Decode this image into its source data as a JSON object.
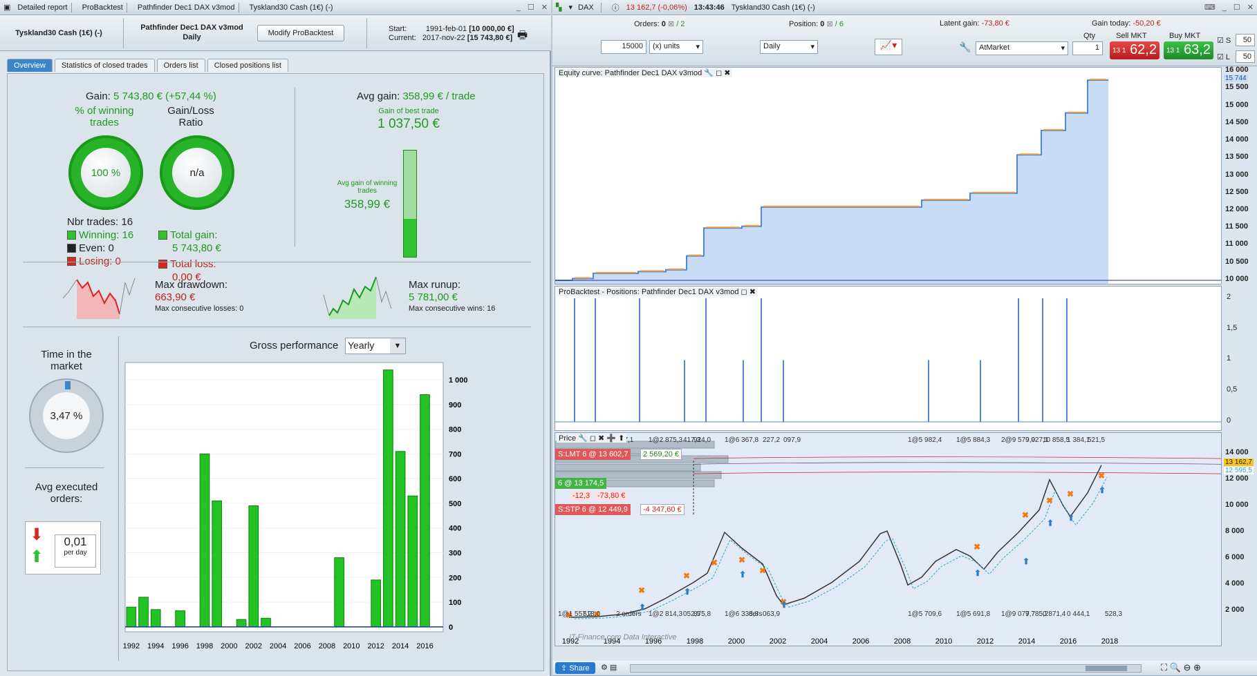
{
  "left_title": {
    "items": [
      "Detailed report",
      "ProBacktest",
      "Pathfinder Dec1 DAX v3mod",
      "Tyskland30 Cash (1€) (-)"
    ]
  },
  "header": {
    "instrument": "Tyskland30 Cash (1€) (-)",
    "system": "Pathfinder Dec1 DAX v3mod",
    "period": "Daily",
    "modify": "Modify ProBacktest",
    "start_label": "Start:",
    "start_date": "1991-feb-01",
    "start_val": "[10 000,00 €]",
    "current_label": "Current:",
    "current_date": "2017-nov-22",
    "current_val": "[15 743,80 €]"
  },
  "tabs": [
    "Overview",
    "Statistics of closed trades",
    "Orders list",
    "Closed positions list"
  ],
  "gain": {
    "label": "Gain:",
    "value": "5 743,80 € (+57,44 %)"
  },
  "pct_win": {
    "label": "% of winning trades",
    "value": "100 %"
  },
  "ratio": {
    "label": "Gain/Loss Ratio",
    "value": "n/a"
  },
  "trades": {
    "nbr": "Nbr trades: 16",
    "winning": "Winning: 16",
    "even": "Even: 0",
    "losing": "Losing: 0",
    "total_gain_label": "Total gain:",
    "total_gain": "5 743,80 €",
    "total_loss_label": "Total loss:",
    "total_loss": "0,00 €"
  },
  "avg": {
    "label": "Avg gain:",
    "value": "358,99 € / trade",
    "best_label": "Gain of best trade",
    "best": "1 037,50 €",
    "avg_win_label": "Avg gain of winning trades",
    "avg_win": "358,99 €"
  },
  "dd": {
    "label": "Max drawdown:",
    "value": "663,90 €",
    "consec": "Max consecutive losses: 0"
  },
  "ru": {
    "label": "Max runup:",
    "value": "5 781,00 €",
    "consec": "Max consecutive wins: 16"
  },
  "time": {
    "label": "Time in the market",
    "value": "3,47 %"
  },
  "avgexec": {
    "label": "Avg executed orders:",
    "value": "0,01",
    "unit": "per day"
  },
  "gross": {
    "label": "Gross performance",
    "select": "Yearly"
  },
  "chart_data": {
    "type": "bar",
    "x": [
      1992,
      1993,
      1994,
      1995,
      1996,
      1997,
      1998,
      1999,
      2000,
      2001,
      2002,
      2003,
      2004,
      2005,
      2006,
      2007,
      2008,
      2009,
      2010,
      2011,
      2012,
      2013,
      2014,
      2015,
      2016,
      2017
    ],
    "values": [
      80,
      120,
      70,
      0,
      65,
      0,
      700,
      510,
      0,
      30,
      490,
      35,
      0,
      0,
      0,
      0,
      0,
      280,
      0,
      0,
      190,
      1040,
      710,
      530,
      940,
      0
    ],
    "xticks": [
      "1992",
      "1994",
      "1996",
      "1998",
      "2000",
      "2002",
      "2004",
      "2006",
      "2008",
      "2010",
      "2012",
      "2014",
      "2016"
    ],
    "yticks": [
      "1 000",
      "900",
      "800",
      "700",
      "600",
      "500",
      "400",
      "300",
      "200",
      "100",
      "0"
    ],
    "ylim": [
      -20,
      1070
    ],
    "colors": {
      "bar": "#22c322"
    }
  },
  "right_title": {
    "sym": "DAX",
    "price": "13 162,7 (-0,06%)",
    "time": "13:43:46",
    "name": "Tyskland30 Cash (1€) (-)"
  },
  "rtool": {
    "orders_label": "Orders:",
    "orders": "0",
    "orders2": "/ 2",
    "pos_label": "Position:",
    "pos": "0",
    "pos2": "/ 6",
    "latent_label": "Latent gain:",
    "latent": "-73,80 €",
    "today_label": "Gain today:",
    "today": "-50,20 €",
    "qty_val": "15000",
    "units": "(x) units",
    "period": "Daily",
    "atmarket": "AtMarket",
    "qty_label": "Qty",
    "qty": "1",
    "sell_label": "Sell MKT",
    "sell_small": "13 1",
    "sell_big": "62,2",
    "buy_label": "Buy MKT",
    "buy_small": "13 1",
    "buy_big": "63,2",
    "s_label": "S",
    "s_val": "50",
    "l_label": "L",
    "l_val": "50"
  },
  "equity": {
    "title": "Equity curve: Pathfinder Dec1 DAX v3mod",
    "ticks": [
      "16 000",
      "15 500",
      "15 000",
      "14 500",
      "14 000",
      "13 500",
      "13 000",
      "12 500",
      "12 000",
      "11 500",
      "11 000",
      "10 500",
      "10 000"
    ],
    "last": "15 744"
  },
  "positions": {
    "title": "ProBacktest - Positions: Pathfinder Dec1 DAX v3mod",
    "ticks": [
      "2",
      "1,5",
      "1",
      "0,5",
      "0"
    ]
  },
  "price": {
    "title": "Price",
    "ticks": [
      "14 000",
      "12 000",
      "10 000",
      "8 000",
      "6 000",
      "4 000",
      "2 000"
    ],
    "last": "13 162,7",
    "l2": "12 595,5",
    "xticks": [
      "1992",
      "1994",
      "1996",
      "1998",
      "2000",
      "2002",
      "2004",
      "2006",
      "2008",
      "2010",
      "2012",
      "2014",
      "2016",
      "2018"
    ],
    "toptags": [
      "2 077,1",
      "1@2 875,3",
      "417,3",
      "924,0",
      "1@6 367,8",
      "227,2",
      "097,9",
      "1@5 982,4",
      "1@5 884,3",
      "2@9 579,0",
      "9 927,1",
      "10 858,5",
      "1 384,1",
      "521,5"
    ],
    "bottags": [
      "1@1 557,2",
      "518,0",
      "2 orders",
      "1@2 814,3",
      "052,5",
      "875,8",
      "1@6 338,8",
      "ders",
      "063,9",
      "1@5 709,6",
      "1@5 691,8",
      "1@9 077,7",
      "9 785,2",
      "0 871,4",
      "0 444,1",
      "528,3"
    ],
    "stop_lmt": "S:LMT  6 @ 13 602,7",
    "lmt_gain": "2 569,20 €",
    "pos_tag": "6 @ 13 174,5",
    "pos_pts": "-12,3",
    "pos_eur": "-73,80 €",
    "stop_stp": "S:STP  6 @ 12 449,9",
    "stp_loss": "-4 347,60 €",
    "watermark": "IT-Finance.com  Data Interactive"
  },
  "bottom": {
    "share": "Share"
  }
}
